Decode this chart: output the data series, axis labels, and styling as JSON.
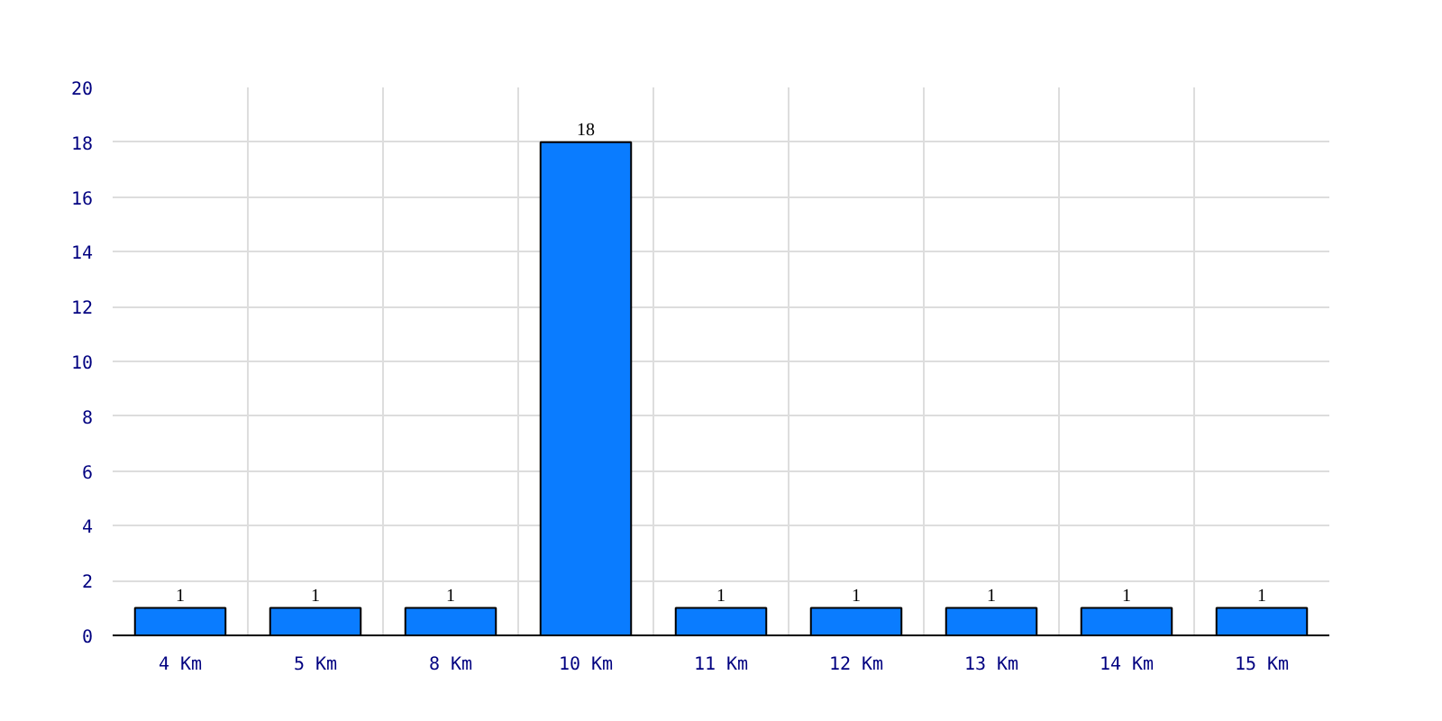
{
  "chart_data": {
    "type": "bar",
    "categories": [
      "4 Km",
      "5 Km",
      "8 Km",
      "10 Km",
      "11 Km",
      "12 Km",
      "13 Km",
      "14 Km",
      "15 Km"
    ],
    "values": [
      1,
      1,
      1,
      18,
      1,
      1,
      1,
      1,
      1
    ],
    "color": "#0a7cff",
    "ylim": [
      0,
      20
    ],
    "yticks": [
      0,
      2,
      4,
      6,
      8,
      10,
      12,
      14,
      16,
      18,
      20
    ],
    "grid": true,
    "data_labels": true
  }
}
